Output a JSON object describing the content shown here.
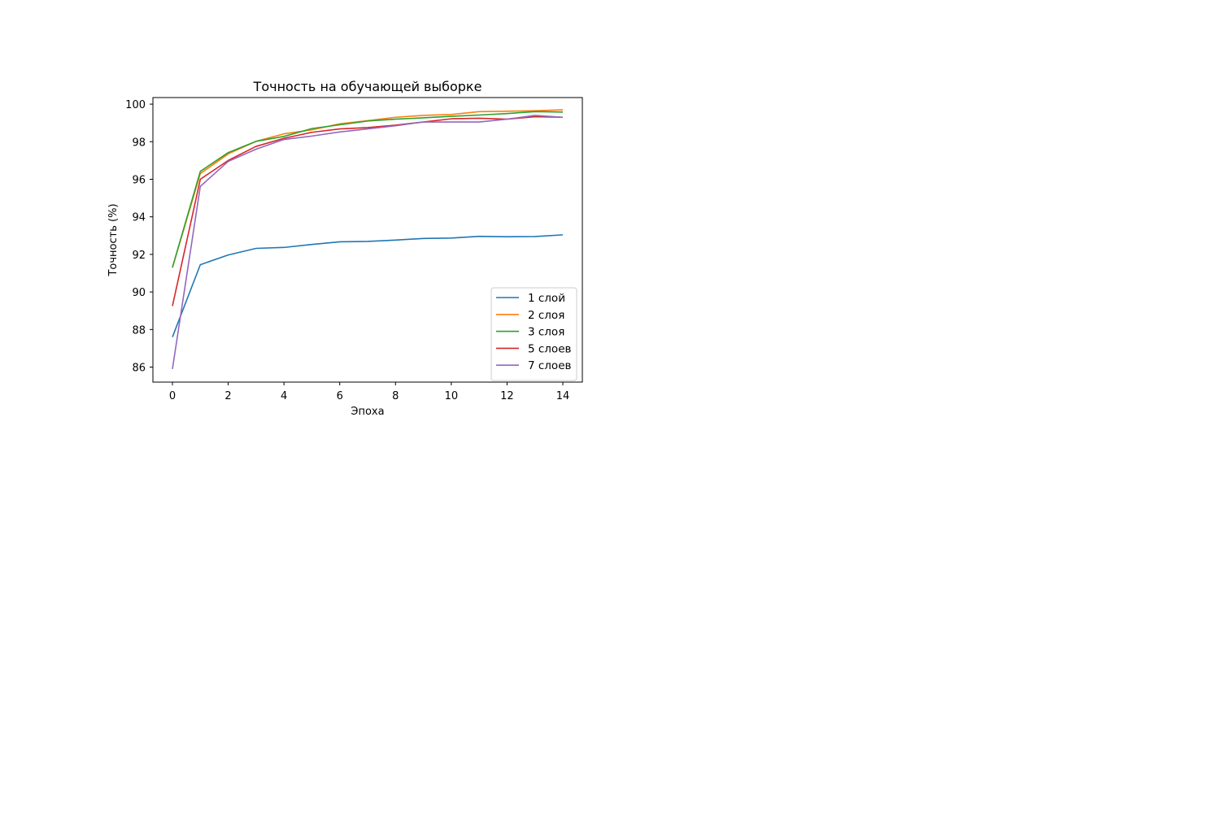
{
  "chart_data": {
    "type": "line",
    "title": "Точность на обучающей выборке",
    "xlabel": "Эпоха",
    "ylabel": "Точность (%)",
    "xlim": [
      -0.7,
      14.7
    ],
    "ylim": [
      85.2,
      100.35
    ],
    "x_ticks": [
      0,
      2,
      4,
      6,
      8,
      10,
      12,
      14
    ],
    "y_ticks": [
      86,
      88,
      90,
      92,
      94,
      96,
      98,
      100
    ],
    "grid": false,
    "legend_position": "lower-right",
    "x": [
      0,
      1,
      2,
      3,
      4,
      5,
      6,
      7,
      8,
      9,
      10,
      11,
      12,
      13,
      14
    ],
    "series": [
      {
        "name": "1 слой",
        "color": "#1f77b4",
        "values": [
          87.6,
          91.45,
          91.97,
          92.32,
          92.37,
          92.53,
          92.67,
          92.69,
          92.76,
          92.85,
          92.87,
          92.96,
          92.94,
          92.95,
          93.04
        ]
      },
      {
        "name": "2 слоя",
        "color": "#ff7f0e",
        "values": [
          91.3,
          96.3,
          97.35,
          98.02,
          98.42,
          98.63,
          98.95,
          99.12,
          99.3,
          99.4,
          99.45,
          99.6,
          99.62,
          99.65,
          99.7
        ]
      },
      {
        "name": "3 слоя",
        "color": "#2ca02c",
        "values": [
          91.3,
          96.42,
          97.42,
          98.02,
          98.28,
          98.7,
          98.9,
          99.1,
          99.2,
          99.27,
          99.35,
          99.42,
          99.5,
          99.6,
          99.58
        ]
      },
      {
        "name": "5 слоев",
        "color": "#d62728",
        "values": [
          89.25,
          96.0,
          97.0,
          97.75,
          98.18,
          98.5,
          98.68,
          98.75,
          98.88,
          99.05,
          99.22,
          99.25,
          99.2,
          99.33,
          99.3
        ]
      },
      {
        "name": "7 слоев",
        "color": "#9467bd",
        "values": [
          85.9,
          95.62,
          96.95,
          97.6,
          98.12,
          98.3,
          98.52,
          98.68,
          98.85,
          99.05,
          99.05,
          99.05,
          99.2,
          99.4,
          99.3
        ]
      }
    ]
  }
}
